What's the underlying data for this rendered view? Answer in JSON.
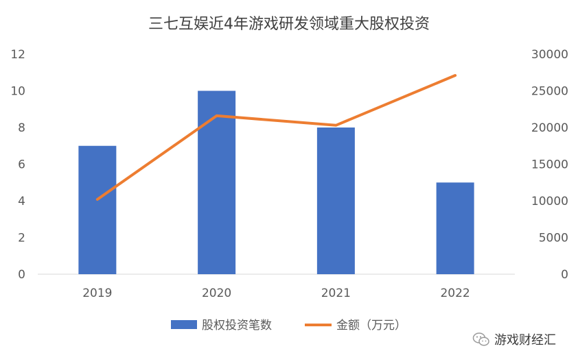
{
  "chart_data": {
    "type": "bar",
    "title": "三七互娱近4年游戏研发领域重大股权投资",
    "categories": [
      "2019",
      "2020",
      "2021",
      "2022"
    ],
    "series": [
      {
        "name": "股权投资笔数",
        "type": "bar",
        "axis": "left",
        "color": "#4472C4",
        "values": [
          7,
          10,
          8,
          5
        ]
      },
      {
        "name": "金额（万元）",
        "type": "line",
        "axis": "right",
        "color": "#ED7D31",
        "values": [
          10200,
          21600,
          20300,
          27100
        ]
      }
    ],
    "y_left": {
      "min": 0,
      "max": 12,
      "step": 2,
      "ticks": [
        "0",
        "2",
        "4",
        "6",
        "8",
        "10",
        "12"
      ]
    },
    "y_right": {
      "min": 0,
      "max": 30000,
      "step": 5000,
      "ticks": [
        "0",
        "5000",
        "10000",
        "15000",
        "20000",
        "25000",
        "30000"
      ]
    },
    "grid": false,
    "legend_position": "bottom"
  },
  "watermark": {
    "text": "游戏财经汇",
    "icon": "wechat-icon"
  }
}
